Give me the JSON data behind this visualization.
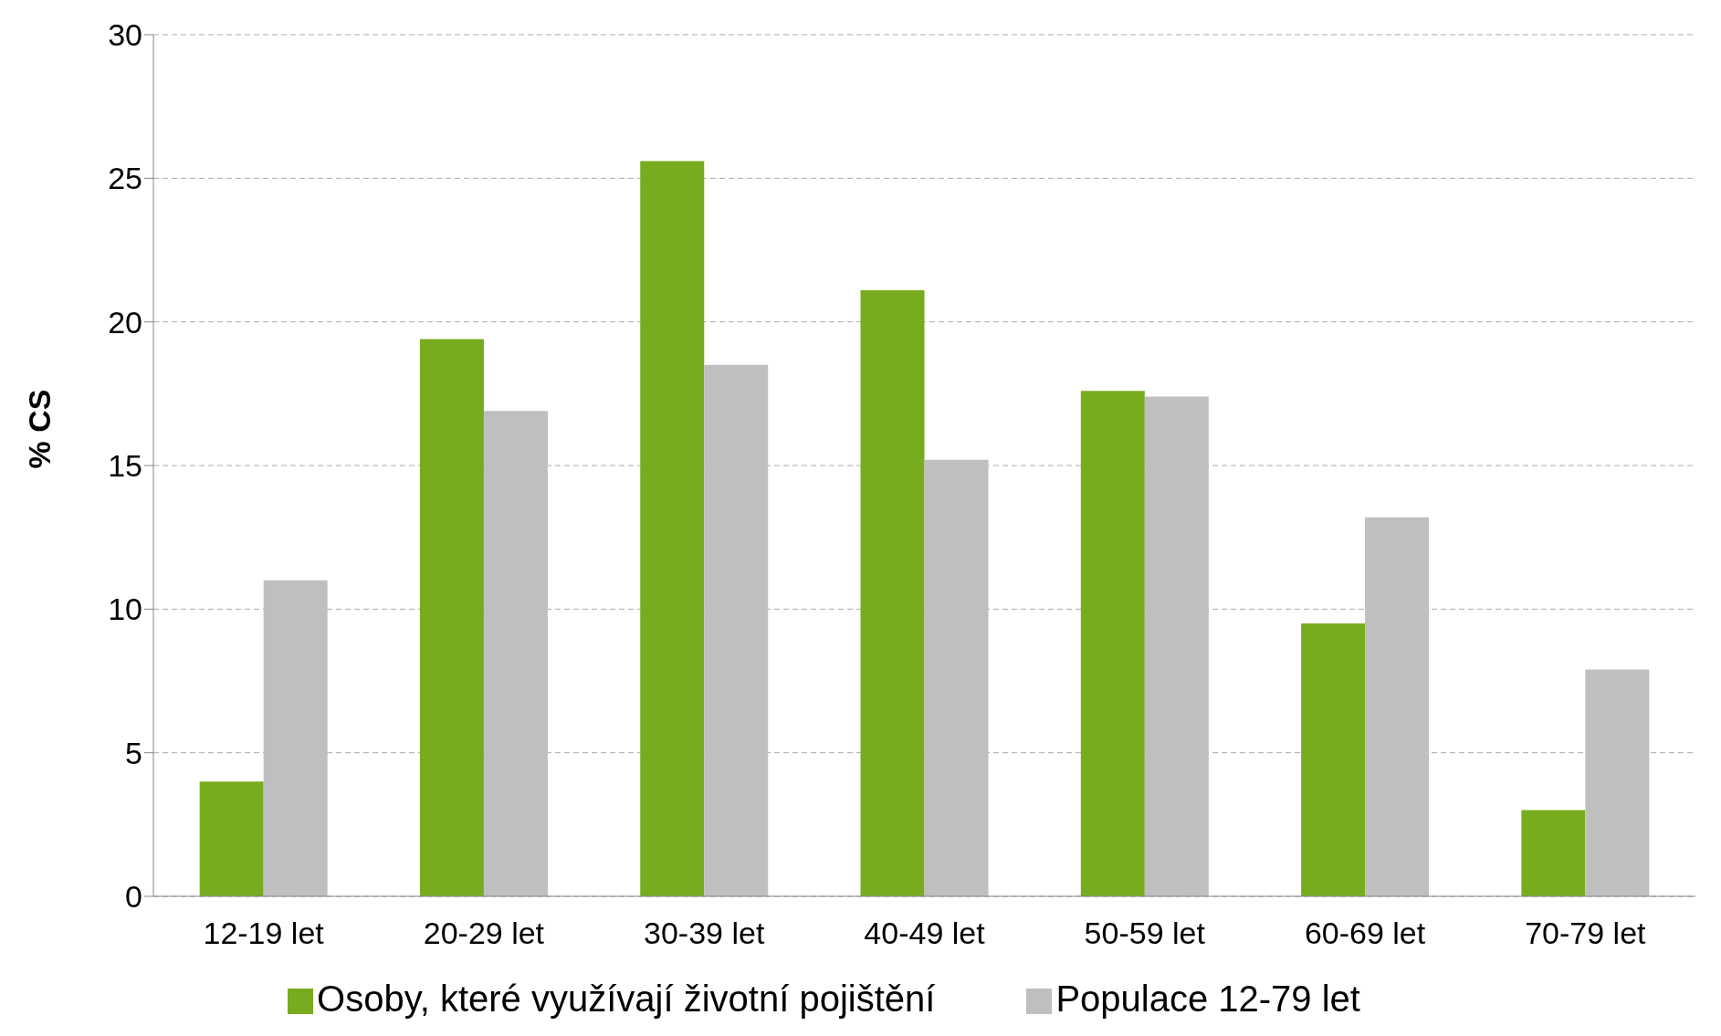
{
  "chart_data": {
    "type": "bar",
    "ylabel": "% CS",
    "categories": [
      "12-19 let",
      "20-29 let",
      "30-39 let",
      "40-49 let",
      "50-59 let",
      "60-69 let",
      "70-79 let"
    ],
    "series": [
      {
        "name": "Osoby, které využívají životní pojištění",
        "color": "#78ac1f",
        "values": [
          4.0,
          19.4,
          25.6,
          21.1,
          17.6,
          9.5,
          3.0
        ]
      },
      {
        "name": "Populace 12-79 let",
        "color": "#bfbfbf",
        "values": [
          11.0,
          16.9,
          18.5,
          15.2,
          17.4,
          13.2,
          7.9
        ]
      }
    ],
    "ylim": [
      0,
      30
    ],
    "yticks": [
      0,
      5,
      10,
      15,
      20,
      25,
      30
    ],
    "grid": "y",
    "legend": "bottom"
  }
}
